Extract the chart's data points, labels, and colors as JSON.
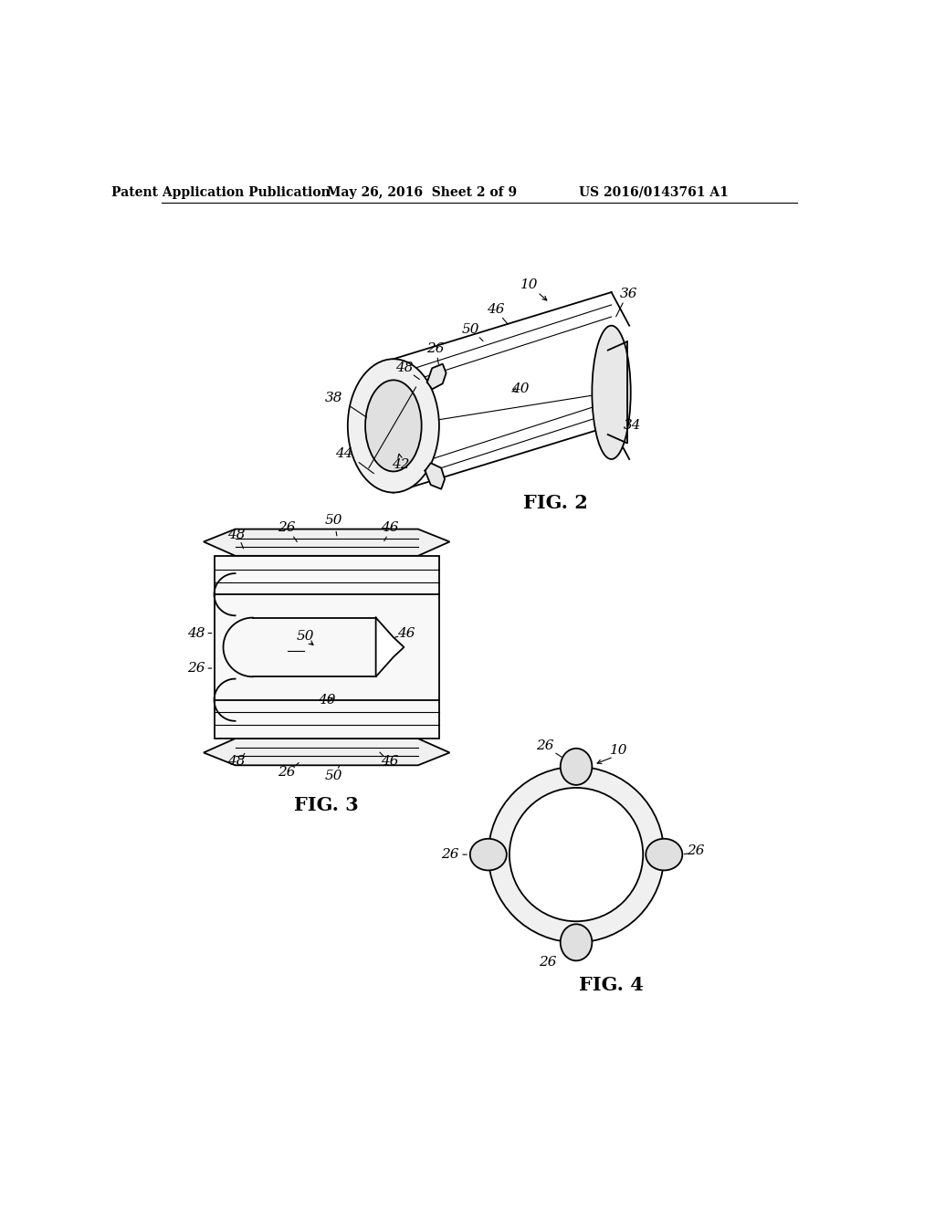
{
  "bg_color": "#ffffff",
  "line_color": "#000000",
  "header_left": "Patent Application Publication",
  "header_mid": "May 26, 2016  Sheet 2 of 9",
  "header_right": "US 2016/0143761 A1"
}
